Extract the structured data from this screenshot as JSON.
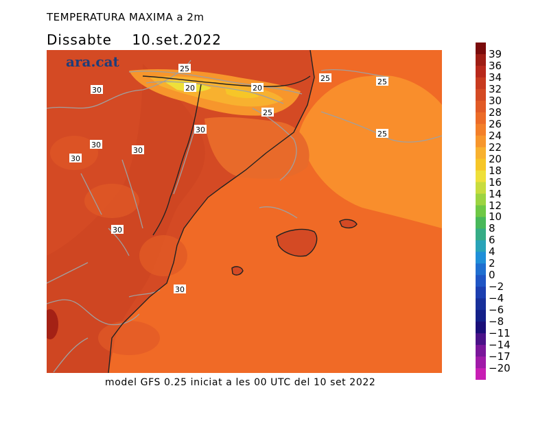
{
  "header": {
    "title": "TEMPERATURA MAXIMA a 2m",
    "date_line": "Dissabte    10.set.2022"
  },
  "logo": {
    "text": "ara.cat"
  },
  "footer": {
    "text": "model GFS 0.25 iniciat a les 00 UTC del 10 set 2022"
  },
  "map": {
    "variable": "maximum 2m temperature",
    "contour_labels": [
      "25",
      "20",
      "20",
      "30",
      "25",
      "25",
      "25",
      "30",
      "30",
      "30",
      "25",
      "30",
      "30"
    ],
    "colors": {
      "land_hot": "#d44a24",
      "land_warm": "#e15a26",
      "sea": "#f06a26",
      "sea_east": "#f98e2c",
      "mountain_cool": "#f6c628",
      "mountain_peak": "#eee03a",
      "contour": "#a0a0a0",
      "coast": "#222222"
    }
  },
  "colorbar": {
    "labels": [
      "39",
      "36",
      "34",
      "32",
      "30",
      "28",
      "26",
      "24",
      "22",
      "20",
      "18",
      "16",
      "14",
      "12",
      "10",
      "8",
      "6",
      "4",
      "2",
      "0",
      "−2",
      "−4",
      "−6",
      "−8",
      "−11",
      "−14",
      "−17",
      "−20"
    ],
    "colors": [
      "#7a0b0b",
      "#9e1d14",
      "#b8281b",
      "#c83a1f",
      "#d44a24",
      "#e15a26",
      "#ec6b27",
      "#f37f29",
      "#f7962c",
      "#f8b12f",
      "#f6c628",
      "#eee03a",
      "#c8dc3e",
      "#9cd441",
      "#6ec845",
      "#48b85a",
      "#36ac86",
      "#29a3b8",
      "#1f8fd8",
      "#1f6fd0",
      "#1f55c4",
      "#1c3fb0",
      "#18309a",
      "#142088",
      "#1a0e78",
      "#4a1288",
      "#7a169a",
      "#a01aa8",
      "#c81eb4"
    ]
  }
}
